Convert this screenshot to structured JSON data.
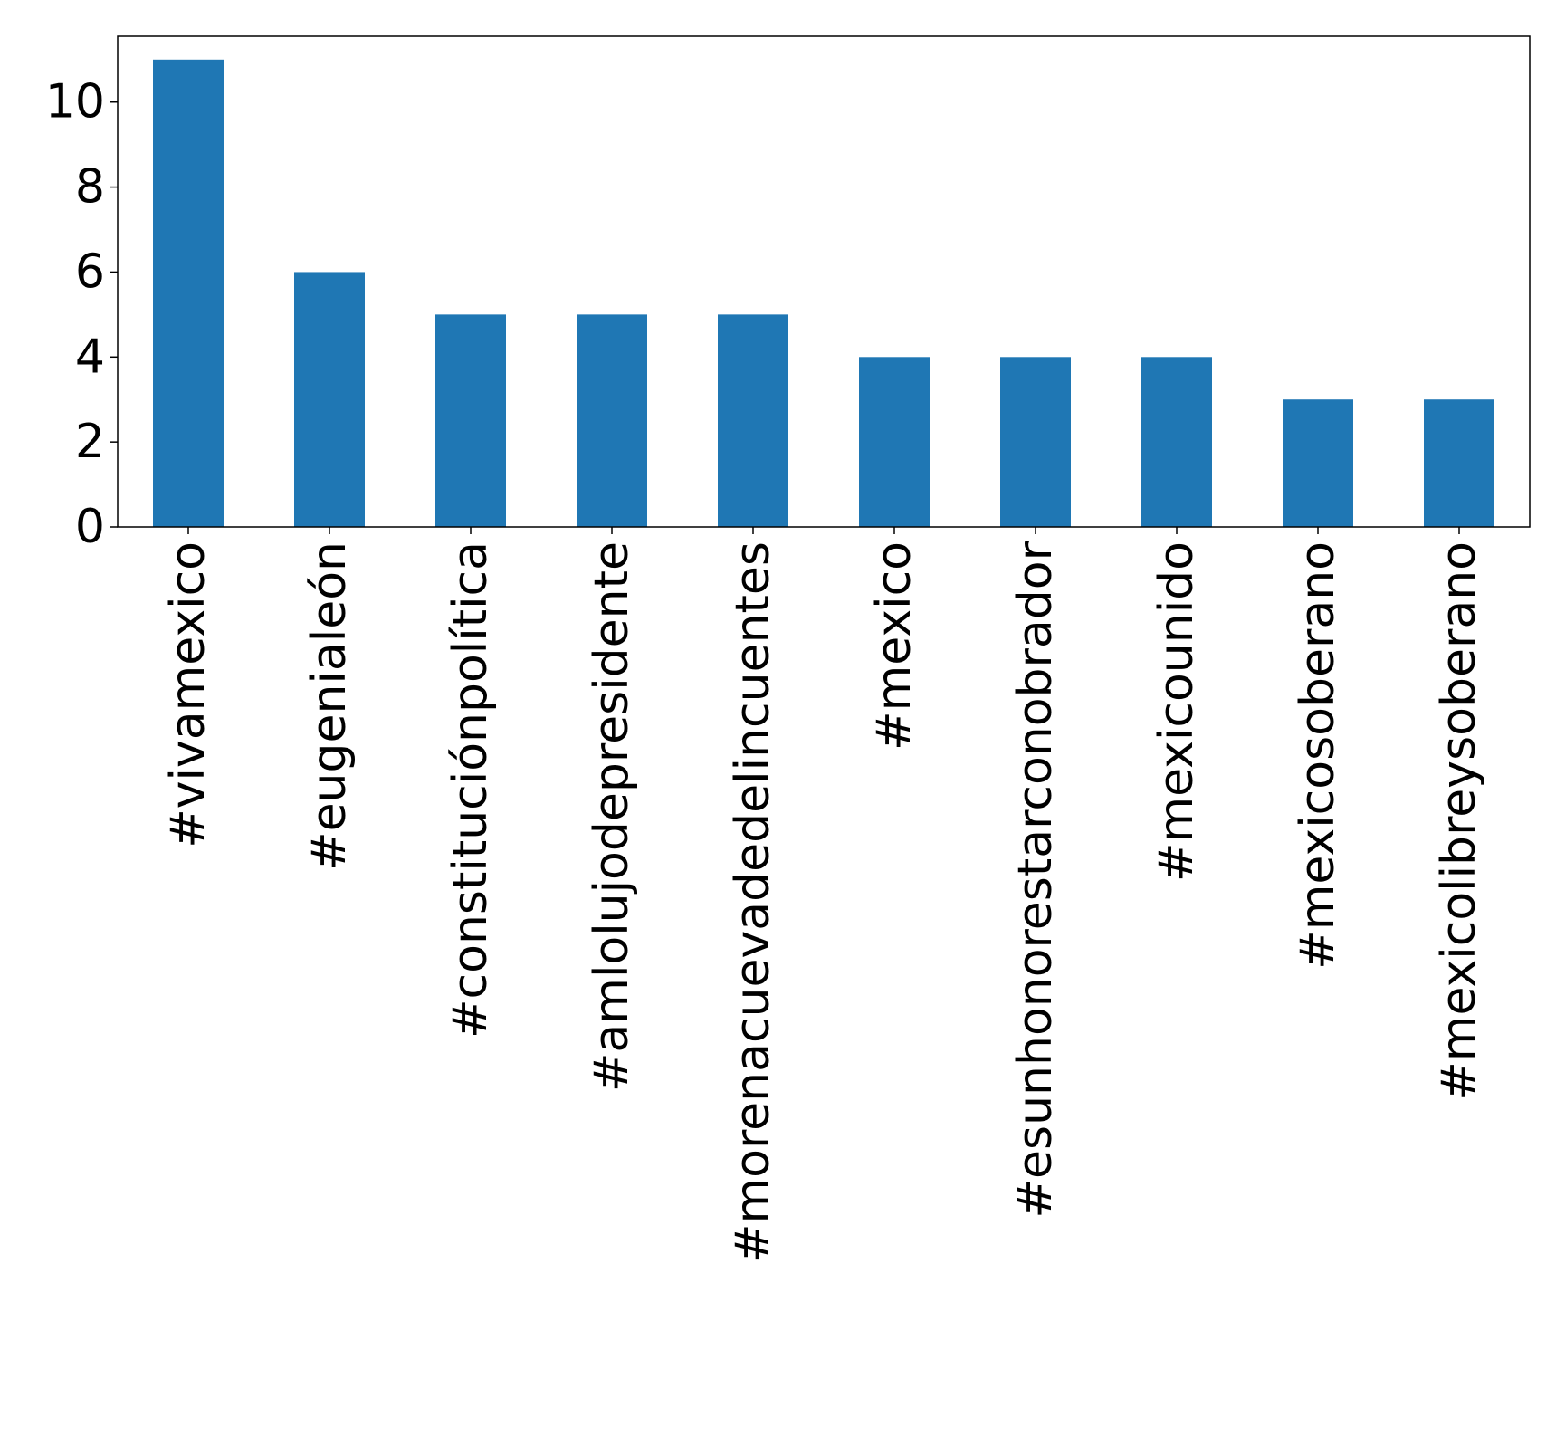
{
  "chart_data": {
    "type": "bar",
    "title": "",
    "xlabel": "",
    "ylabel": "",
    "categories": [
      "#vivamexico",
      "#eugenialeón",
      "#constituciónpolítica",
      "#amlolujodepresidente",
      "#morenacuevadedelincuentes",
      "#mexico",
      "#esunhonorestarconobrador",
      "#mexicounido",
      "#mexicosoberano",
      "#mexicolibreysoberano"
    ],
    "values": [
      11,
      6,
      5,
      5,
      5,
      4,
      4,
      4,
      3,
      3
    ],
    "ylim": [
      0,
      11.55
    ],
    "yticks": [
      0,
      2,
      4,
      6,
      8,
      10
    ],
    "bar_color": "#1f77b4",
    "grid": false,
    "legend": "none"
  }
}
